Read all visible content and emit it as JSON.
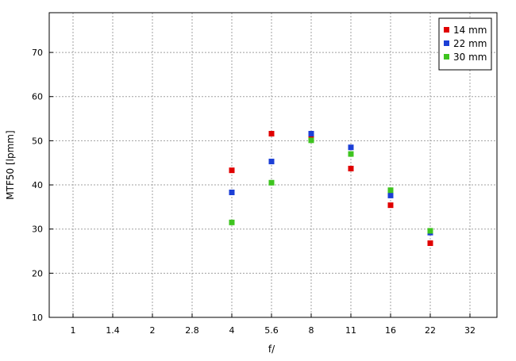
{
  "chart_data": {
    "type": "scatter",
    "title": "",
    "xlabel": "f/",
    "ylabel": "MTF50 [lpmm]",
    "x_categories": [
      "1",
      "1.4",
      "2",
      "2.8",
      "4",
      "5.6",
      "8",
      "11",
      "16",
      "22",
      "32"
    ],
    "ylim": [
      10,
      79
    ],
    "yticks": [
      10,
      20,
      30,
      40,
      50,
      60,
      70
    ],
    "grid": true,
    "legend_position": "top-right",
    "series": [
      {
        "name": "14 mm",
        "color": "#e00000",
        "points": [
          {
            "x": "4",
            "y": 43.3
          },
          {
            "x": "5.6",
            "y": 51.6
          },
          {
            "x": "8",
            "y": 51.0
          },
          {
            "x": "11",
            "y": 43.7
          },
          {
            "x": "16",
            "y": 35.4
          },
          {
            "x": "22",
            "y": 26.8
          }
        ]
      },
      {
        "name": "22 mm",
        "color": "#1c3fd6",
        "points": [
          {
            "x": "4",
            "y": 38.3
          },
          {
            "x": "5.6",
            "y": 45.3
          },
          {
            "x": "8",
            "y": 51.6
          },
          {
            "x": "11",
            "y": 48.5
          },
          {
            "x": "16",
            "y": 37.6
          },
          {
            "x": "22",
            "y": 29.2
          }
        ]
      },
      {
        "name": "30 mm",
        "color": "#3ec41f",
        "points": [
          {
            "x": "4",
            "y": 31.5
          },
          {
            "x": "5.6",
            "y": 40.5
          },
          {
            "x": "8",
            "y": 50.1
          },
          {
            "x": "11",
            "y": 47.0
          },
          {
            "x": "16",
            "y": 38.8
          },
          {
            "x": "22",
            "y": 29.6
          }
        ]
      }
    ]
  }
}
